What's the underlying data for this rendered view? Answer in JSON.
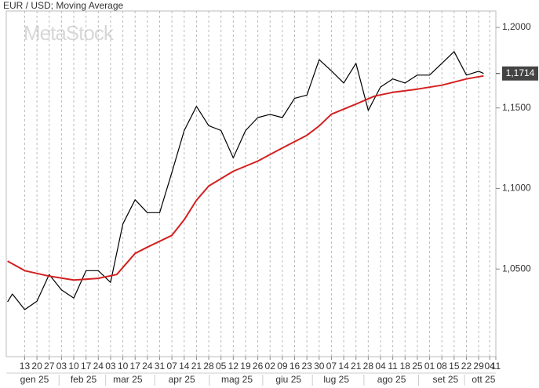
{
  "chart_data": {
    "type": "line",
    "title": "EUR / USD; Moving Average",
    "watermark": "MetaStock",
    "xlim": [
      -1.5,
      38.4
    ],
    "ylim": [
      0.9956,
      1.2102
    ],
    "xticks": [
      {
        "value": 0,
        "label": "13"
      },
      {
        "value": 1,
        "label": "20"
      },
      {
        "value": 2,
        "label": "27"
      },
      {
        "value": 3,
        "label": "03"
      },
      {
        "value": 4,
        "label": "10"
      },
      {
        "value": 5,
        "label": "17"
      },
      {
        "value": 6,
        "label": "24"
      },
      {
        "value": 7,
        "label": "03"
      },
      {
        "value": 8,
        "label": "10"
      },
      {
        "value": 9,
        "label": "17"
      },
      {
        "value": 10,
        "label": "24"
      },
      {
        "value": 11,
        "label": "31"
      },
      {
        "value": 12,
        "label": "07"
      },
      {
        "value": 13,
        "label": "14"
      },
      {
        "value": 14,
        "label": "21"
      },
      {
        "value": 15,
        "label": "28"
      },
      {
        "value": 16,
        "label": "05"
      },
      {
        "value": 17,
        "label": "12"
      },
      {
        "value": 18,
        "label": "19"
      },
      {
        "value": 19,
        "label": "26"
      },
      {
        "value": 20,
        "label": "02"
      },
      {
        "value": 21,
        "label": "09"
      },
      {
        "value": 22,
        "label": "16"
      },
      {
        "value": 23,
        "label": "23"
      },
      {
        "value": 24,
        "label": "30"
      },
      {
        "value": 25,
        "label": "07"
      },
      {
        "value": 26,
        "label": "14"
      },
      {
        "value": 27,
        "label": "21"
      },
      {
        "value": 28,
        "label": "28"
      },
      {
        "value": 29,
        "label": "04"
      },
      {
        "value": 30,
        "label": "11"
      },
      {
        "value": 31,
        "label": "18"
      },
      {
        "value": 32,
        "label": "25"
      },
      {
        "value": 33,
        "label": "01"
      },
      {
        "value": 34,
        "label": "08"
      },
      {
        "value": 35,
        "label": "15"
      },
      {
        "value": 36,
        "label": "22"
      },
      {
        "value": 37,
        "label": "29"
      },
      {
        "value": 37.9,
        "label": "04"
      },
      {
        "value": 38.4,
        "label": "11"
      }
    ],
    "month_labels": [
      {
        "value": 0.8,
        "label": "gen 25"
      },
      {
        "value": 4.8,
        "label": "feb 25"
      },
      {
        "value": 8.4,
        "label": "mar 25"
      },
      {
        "value": 12.8,
        "label": "apr 25"
      },
      {
        "value": 17.3,
        "label": "mag 25"
      },
      {
        "value": 21.5,
        "label": "giu 25"
      },
      {
        "value": 25.4,
        "label": "lug 25"
      },
      {
        "value": 29.9,
        "label": "ago 25"
      },
      {
        "value": 34.3,
        "label": "set 25"
      },
      {
        "value": 37.4,
        "label": "ott 25"
      }
    ],
    "yticks": [
      {
        "value": 1.05,
        "label": "1,0500"
      },
      {
        "value": 1.1,
        "label": "1,1000"
      },
      {
        "value": 1.15,
        "label": "1,1500"
      },
      {
        "value": 1.2,
        "label": "1,2000"
      }
    ],
    "last_value": {
      "value": 1.1714,
      "label": "1,1714"
    },
    "grid": "x",
    "series": [
      {
        "color": "#000000",
        "x": [
          -1.4,
          -1,
          0,
          1,
          2,
          3,
          4,
          5,
          6,
          7,
          8,
          9,
          10,
          11,
          12,
          13,
          14,
          15,
          16,
          17,
          18,
          19,
          20,
          21,
          22,
          23,
          24,
          25,
          26,
          27,
          28,
          29,
          30,
          31,
          32,
          33,
          34,
          35,
          36,
          37,
          37.4
        ],
        "values": [
          1.0296,
          1.0345,
          1.0248,
          1.03,
          1.0466,
          1.037,
          1.032,
          1.049,
          1.049,
          1.0417,
          1.078,
          1.093,
          1.085,
          1.085,
          1.11,
          1.136,
          1.151,
          1.139,
          1.136,
          1.119,
          1.136,
          1.144,
          1.146,
          1.144,
          1.156,
          1.158,
          1.18,
          1.173,
          1.1655,
          1.1777,
          1.1485,
          1.163,
          1.168,
          1.1655,
          1.1704,
          1.1704,
          1.1777,
          1.185,
          1.1704,
          1.1728,
          1.1714
        ]
      },
      {
        "color": "#d42020",
        "x": [
          -1.4,
          0,
          2,
          4,
          6,
          7.5,
          9,
          10,
          12,
          13,
          14,
          15,
          17,
          19,
          21,
          23,
          24,
          25,
          27,
          28.5,
          30,
          32,
          34,
          36,
          37.4
        ],
        "values": [
          1.0549,
          1.049,
          1.0456,
          1.0432,
          1.0442,
          1.0466,
          1.0597,
          1.0636,
          1.0709,
          1.0806,
          1.0927,
          1.1015,
          1.1107,
          1.117,
          1.1252,
          1.133,
          1.1388,
          1.1461,
          1.1524,
          1.1573,
          1.1597,
          1.1617,
          1.1641,
          1.168,
          1.1699
        ]
      }
    ]
  }
}
